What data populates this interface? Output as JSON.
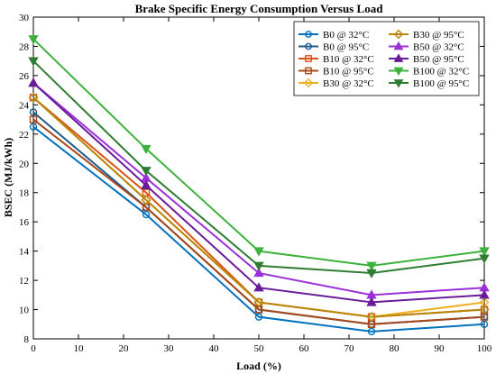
{
  "chart_data": {
    "type": "line",
    "title": "Brake Specific Energy Consumption Versus Load",
    "xlabel": "Load (%)",
    "ylabel": "BSEC (MJ/kWh)",
    "xlim": [
      0,
      100
    ],
    "ylim": [
      8,
      30
    ],
    "xticks": [
      0,
      10,
      20,
      30,
      40,
      50,
      60,
      70,
      80,
      90,
      100
    ],
    "yticks": [
      8,
      10,
      12,
      14,
      16,
      18,
      20,
      22,
      24,
      26,
      28,
      30
    ],
    "grid": false,
    "legend_position": "top-right",
    "x": [
      0,
      25,
      50,
      75,
      100
    ],
    "series": [
      {
        "name": "B0 @ 32°C",
        "color": "#0072BD",
        "marker": "circle",
        "values": [
          22.5,
          16.5,
          9.5,
          8.5,
          9.0
        ]
      },
      {
        "name": "B0 @ 95°C",
        "color": "#1F5A8A",
        "marker": "circle",
        "values": [
          23.5,
          17.0,
          10.0,
          9.0,
          9.5
        ]
      },
      {
        "name": "B10 @ 32°C",
        "color": "#D95319",
        "marker": "square",
        "values": [
          24.5,
          18.0,
          10.5,
          9.5,
          10.0
        ]
      },
      {
        "name": "B10 @ 95°C",
        "color": "#A8481A",
        "marker": "square",
        "values": [
          23.0,
          17.0,
          10.0,
          9.0,
          9.5
        ]
      },
      {
        "name": "B30 @ 32°C",
        "color": "#EDB120",
        "marker": "diamond",
        "values": [
          24.5,
          17.5,
          10.5,
          9.5,
          10.5
        ]
      },
      {
        "name": "B30 @ 95°C",
        "color": "#B8860B",
        "marker": "diamond",
        "values": [
          24.5,
          17.5,
          10.5,
          9.5,
          10.0
        ]
      },
      {
        "name": "B50 @ 32°C",
        "color": "#9B30D9",
        "marker": "triangle-up",
        "values": [
          25.5,
          19.0,
          12.5,
          11.0,
          11.5
        ]
      },
      {
        "name": "B50 @ 95°C",
        "color": "#6A1B9A",
        "marker": "triangle-up",
        "values": [
          25.5,
          18.5,
          11.5,
          10.5,
          11.0
        ]
      },
      {
        "name": "B100 @ 32°C",
        "color": "#3CB23C",
        "marker": "triangle-down",
        "values": [
          28.5,
          21.0,
          14.0,
          13.0,
          14.0
        ]
      },
      {
        "name": "B100 @ 95°C",
        "color": "#2E7D32",
        "marker": "triangle-down",
        "values": [
          27.0,
          19.5,
          13.0,
          12.5,
          13.5
        ]
      }
    ]
  }
}
